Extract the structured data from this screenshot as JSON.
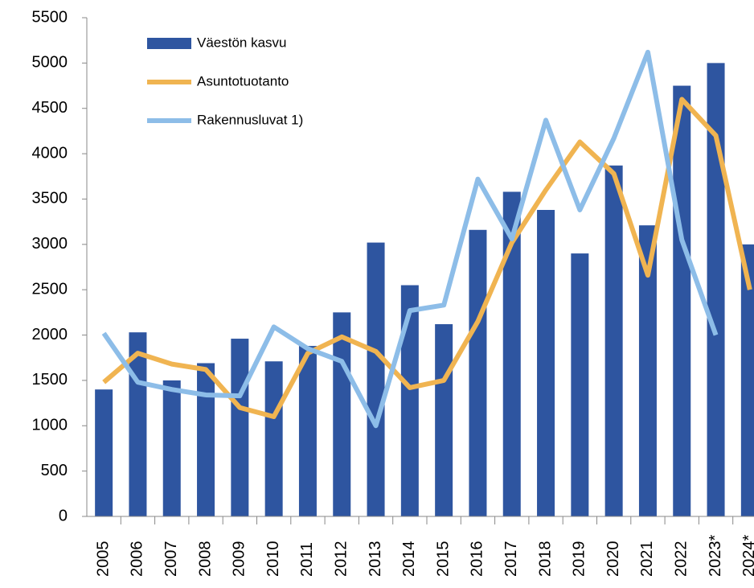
{
  "chart_data": {
    "type": "bar-line",
    "categories": [
      "2005",
      "2006",
      "2007",
      "2008",
      "2009",
      "2010",
      "2011",
      "2012",
      "2013",
      "2014",
      "2015",
      "2016",
      "2017",
      "2018",
      "2019",
      "2020",
      "2021",
      "2022",
      "2023*",
      "2024*"
    ],
    "series": [
      {
        "name": "Väestön kasvu",
        "type": "bar",
        "color": "#2e55a0",
        "values": [
          1400,
          2030,
          1500,
          1690,
          1960,
          1710,
          1880,
          2250,
          3020,
          2550,
          2120,
          3160,
          3580,
          3380,
          2900,
          3870,
          3210,
          4750,
          5000,
          3000
        ]
      },
      {
        "name": "Asuntotuotanto",
        "type": "line",
        "color": "#f0b451",
        "values": [
          1480,
          1800,
          1680,
          1620,
          1200,
          1100,
          1800,
          1980,
          1820,
          1420,
          1500,
          2150,
          3020,
          3600,
          4130,
          3780,
          2660,
          4600,
          4200,
          2500
        ]
      },
      {
        "name": "Rakennusluvat 1)",
        "type": "line",
        "color": "#8dbde8",
        "values": [
          2020,
          1480,
          1400,
          1340,
          1330,
          2090,
          1850,
          1710,
          1000,
          2270,
          2330,
          3720,
          3060,
          4370,
          3380,
          4170,
          5120,
          3050,
          2000,
          null
        ]
      }
    ],
    "ylim": [
      0,
      5500
    ],
    "yticks": [
      0,
      500,
      1000,
      1500,
      2000,
      2500,
      3000,
      3500,
      4000,
      4500,
      5000,
      5500
    ],
    "grid": false,
    "legend": "upper left"
  }
}
